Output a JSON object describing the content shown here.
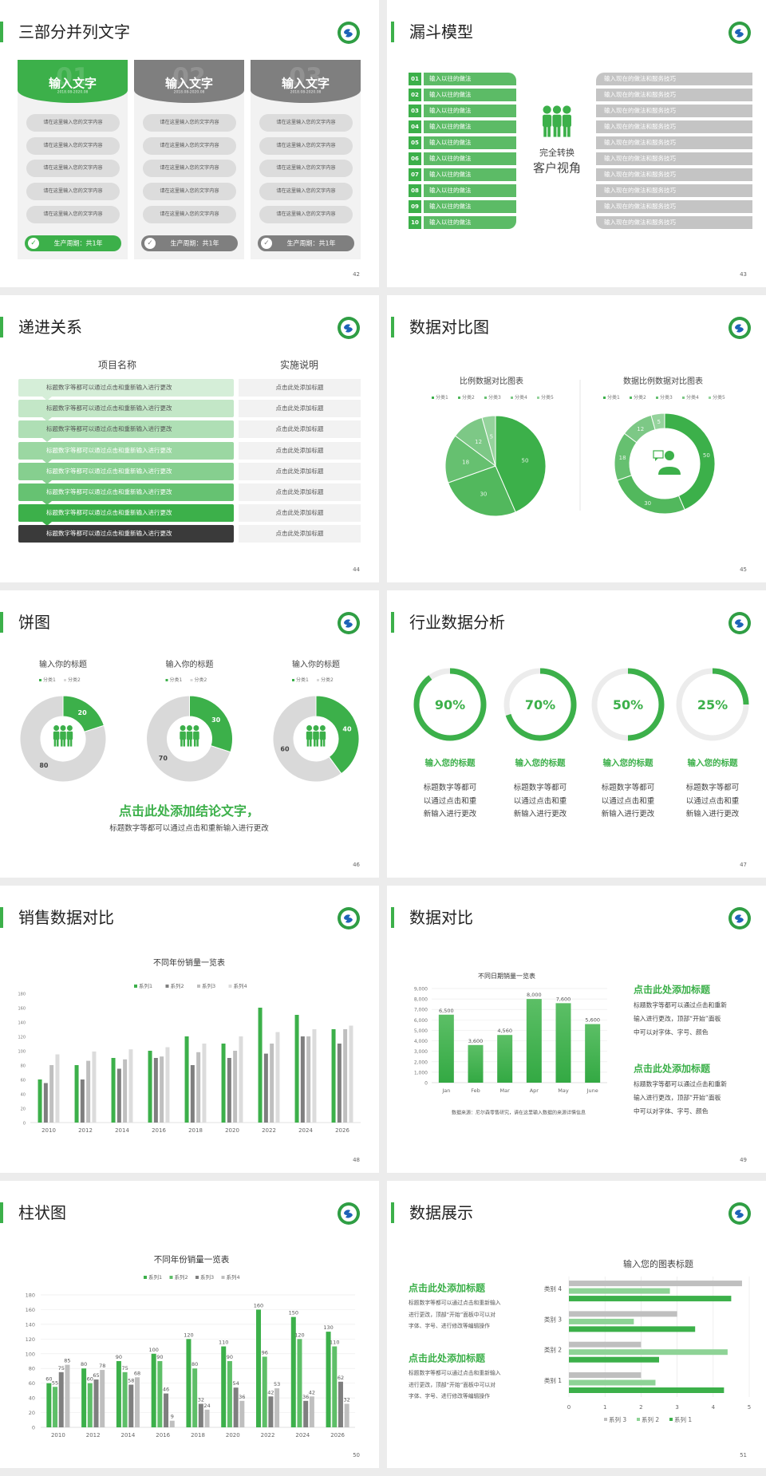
{
  "colors": {
    "green": "#3cb04a",
    "gray": "#7f7f7f",
    "light_gray": "#d9d9d9",
    "dark": "#3a3a3a"
  },
  "s42": {
    "title": "三部分并列文字",
    "page": "42",
    "cards": [
      {
        "heading": "输入文字",
        "number": "01",
        "date": "2018.08-2020.08",
        "accent": "#3cb04a",
        "items": [
          "请在这里输入您的文字内容",
          "请在这里输入您的文字内容",
          "请在这里输入您的文字内容",
          "请在这里输入您的文字内容",
          "请在这里输入您的文字内容"
        ],
        "footer": "生产周期：共1年",
        "footer_icon": "check-circle-icon"
      },
      {
        "heading": "输入文字",
        "number": "02",
        "date": "2018.08-2020.08",
        "accent": "#7f7f7f",
        "items": [
          "请在这里输入您的文字内容",
          "请在这里输入您的文字内容",
          "请在这里输入您的文字内容",
          "请在这里输入您的文字内容",
          "请在这里输入您的文字内容"
        ],
        "footer": "生产周期：共1年",
        "footer_icon": "check-circle-icon"
      },
      {
        "heading": "输入文字",
        "number": "03",
        "date": "2018.08-2020.08",
        "accent": "#7f7f7f",
        "items": [
          "请在这里输入您的文字内容",
          "请在这里输入您的文字内容",
          "请在这里输入您的文字内容",
          "请在这里输入您的文字内容",
          "请在这里输入您的文字内容"
        ],
        "footer": "生产周期：共1年",
        "footer_icon": "check-circle-icon"
      }
    ]
  },
  "s43": {
    "title": "漏斗模型",
    "page": "43",
    "left_rows": [
      {
        "num": "01",
        "label": "输入以往的做法"
      },
      {
        "num": "02",
        "label": "输入以往的做法"
      },
      {
        "num": "03",
        "label": "输入以往的做法"
      },
      {
        "num": "04",
        "label": "输入以往的做法"
      },
      {
        "num": "05",
        "label": "输入以往的做法"
      },
      {
        "num": "06",
        "label": "输入以往的做法"
      },
      {
        "num": "07",
        "label": "输入以往的做法"
      },
      {
        "num": "08",
        "label": "输入以往的做法"
      },
      {
        "num": "09",
        "label": "输入以往的做法"
      },
      {
        "num": "10",
        "label": "输入以往的做法"
      }
    ],
    "right_rows": [
      "输入现在的做法和服务技巧",
      "输入现在的做法和服务技巧",
      "输入现在的做法和服务技巧",
      "输入现在的做法和服务技巧",
      "输入现在的做法和服务技巧",
      "输入现在的做法和服务技巧",
      "输入现在的做法和服务技巧",
      "输入现在的做法和服务技巧",
      "输入现在的做法和服务技巧",
      "输入现在的做法和服务技巧"
    ],
    "center_line1": "完全转换",
    "center_line2": "客户视角",
    "center_icon": "people-group-icon"
  },
  "s44": {
    "title": "递进关系",
    "page": "44",
    "col1_header": "项目名称",
    "col2_header": "实施说明",
    "rows": [
      {
        "item": "标题数字等都可以通过点击和重新输入进行更改",
        "note": "点击此处添加标题",
        "color": "#d5eed8"
      },
      {
        "item": "标题数字等都可以通过点击和重新输入进行更改",
        "note": "点击此处添加标题",
        "color": "#c3e7c7"
      },
      {
        "item": "标题数字等都可以通过点击和重新输入进行更改",
        "note": "点击此处添加标题",
        "color": "#afdfb5"
      },
      {
        "item": "标题数字等都可以通过点击和重新输入进行更改",
        "note": "点击此处添加标题",
        "color": "#9bd7a2"
      },
      {
        "item": "标题数字等都可以通过点击和重新输入进行更改",
        "note": "点击此处添加标题",
        "color": "#86cf8f"
      },
      {
        "item": "标题数字等都可以通过点击和重新输入进行更改",
        "note": "点击此处添加标题",
        "color": "#66c272"
      },
      {
        "item": "标题数字等都可以通过点击和重新输入进行更改",
        "note": "点击此处添加标题",
        "color": "#3cb04a"
      },
      {
        "item": "标题数字等都可以通过点击和重新输入进行更改",
        "note": "点击此处添加标题",
        "color": "#3a3a3a"
      }
    ]
  },
  "s45": {
    "title": "数据对比图",
    "page": "45"
  },
  "s46": {
    "title": "饼图",
    "page": "46",
    "conclusion": "点击此处添加结论文字，",
    "subtitle": "标题数字等都可以通过点击和重新输入进行更改"
  },
  "s47": {
    "title": "行业数据分析",
    "page": "47",
    "rings": [
      {
        "percent": 90,
        "label": "90%",
        "heading": "输入您的标题",
        "lines": [
          "标题数字等都可",
          "以通过点击和重",
          "新输入进行更改"
        ]
      },
      {
        "percent": 70,
        "label": "70%",
        "heading": "输入您的标题",
        "lines": [
          "标题数字等都可",
          "以通过点击和重",
          "新输入进行更改"
        ]
      },
      {
        "percent": 50,
        "label": "50%",
        "heading": "输入您的标题",
        "lines": [
          "标题数字等都可",
          "以通过点击和重",
          "新输入进行更改"
        ]
      },
      {
        "percent": 25,
        "label": "25%",
        "heading": "输入您的标题",
        "lines": [
          "标题数字等都可",
          "以通过点击和重",
          "新输入进行更改"
        ]
      }
    ]
  },
  "s48": {
    "title": "销售数据对比",
    "page": "48"
  },
  "s49": {
    "title": "数据对比",
    "page": "49",
    "source": "数据来源：尼尔森零售研究，请在这里输入数据的来源详情信息",
    "blocks": [
      {
        "heading": "点击此处添加标题",
        "lines": [
          "标题数字等都可以通过点击和重新",
          "输入进行更改，顶部“开始”面板",
          "中可以对字体、字号、颜色"
        ]
      },
      {
        "heading": "点击此处添加标题",
        "lines": [
          "标题数字等都可以通过点击和重新",
          "输入进行更改，顶部“开始”面板",
          "中可以对字体、字号、颜色"
        ]
      }
    ]
  },
  "s50": {
    "title": "柱状图",
    "page": "50"
  },
  "s51": {
    "title": "数据展示",
    "page": "51",
    "blocks": [
      {
        "heading": "点击此处添加标题",
        "lines": [
          "标题数字等都可以通过点击和重新输入",
          "进行更改，顶部“开始”面板中可以对",
          "字体、字号、进行修改等编辑操作"
        ]
      },
      {
        "heading": "点击此处添加标题",
        "lines": [
          "标题数字等都可以通过点击和重新输入",
          "进行更改，顶部“开始”面板中可以对",
          "字体、字号、进行修改等编辑操作"
        ]
      }
    ]
  },
  "chart_data": [
    {
      "id": "s45_pie",
      "type": "pie",
      "title": "比例数据对比图表",
      "categories": [
        "分类1",
        "分类2",
        "分类3",
        "分类4",
        "分类5"
      ],
      "values": [
        50,
        30,
        18,
        12,
        5
      ],
      "colors": [
        "#3cb04a",
        "#52b85d",
        "#66c070",
        "#7dc886",
        "#95d39c"
      ],
      "legend": "top"
    },
    {
      "id": "s45_donut",
      "type": "pie",
      "donut": true,
      "title": "数据比例数据对比图表",
      "categories": [
        "分类1",
        "分类2",
        "分类3",
        "分类4",
        "分类5"
      ],
      "values": [
        50,
        30,
        18,
        12,
        5
      ],
      "colors": [
        "#3cb04a",
        "#52b85d",
        "#66c070",
        "#7dc886",
        "#95d39c"
      ],
      "legend": "top",
      "center_icon": "customer-service-icon"
    },
    {
      "id": "s46_a",
      "type": "pie",
      "donut": true,
      "title": "输入你的标题",
      "categories": [
        "分类1",
        "分类2"
      ],
      "values": [
        20,
        80
      ],
      "colors": [
        "#3cb04a",
        "#d9d9d9"
      ],
      "legend": "top",
      "center_icon": "people-group-icon"
    },
    {
      "id": "s46_b",
      "type": "pie",
      "donut": true,
      "title": "输入你的标题",
      "categories": [
        "分类1",
        "分类2"
      ],
      "values": [
        30,
        70
      ],
      "colors": [
        "#3cb04a",
        "#d9d9d9"
      ],
      "legend": "top",
      "center_icon": "people-group-icon"
    },
    {
      "id": "s46_c",
      "type": "pie",
      "donut": true,
      "title": "输入你的标题",
      "categories": [
        "分类1",
        "分类2"
      ],
      "values": [
        40,
        60
      ],
      "colors": [
        "#3cb04a",
        "#d9d9d9"
      ],
      "legend": "top",
      "center_icon": "people-group-icon"
    },
    {
      "id": "s48_bar",
      "type": "bar",
      "title": "不同年份销量一览表",
      "categories": [
        "2010",
        "2012",
        "2014",
        "2016",
        "2018",
        "2020",
        "2022",
        "2024",
        "2026"
      ],
      "series": [
        {
          "name": "系列1",
          "color": "#3cb04a",
          "values": [
            60,
            80,
            90,
            100,
            120,
            110,
            160,
            150,
            130
          ]
        },
        {
          "name": "系列2",
          "color": "#7f7f7f",
          "values": [
            55,
            60,
            75,
            90,
            80,
            90,
            96,
            120,
            110
          ]
        },
        {
          "name": "系列3",
          "color": "#bfbfbf",
          "values": [
            80,
            86,
            88,
            92,
            98,
            100,
            110,
            120,
            130
          ]
        },
        {
          "name": "系列4",
          "color": "#dcdcdc",
          "values": [
            95,
            99,
            102,
            105,
            110,
            120,
            126,
            130,
            135
          ]
        }
      ],
      "ylim": [
        0,
        180
      ],
      "yticks": [
        "0",
        "20",
        "40",
        "60",
        "80",
        "100",
        "120",
        "140",
        "160",
        "180"
      ],
      "legend": "top",
      "grid": false,
      "data_labels": false
    },
    {
      "id": "s49_bar",
      "type": "bar",
      "title": "不同日期销量一览表",
      "categories": [
        "Jan",
        "Feb",
        "Mar",
        "Apr",
        "May",
        "June"
      ],
      "series": [
        {
          "color": "#3cb04a",
          "values": [
            6500,
            3600,
            4560,
            8000,
            7600,
            5600
          ],
          "labels": [
            "6,500",
            "3,600",
            "4,560",
            "8,000",
            "7,600",
            "5,600"
          ]
        }
      ],
      "ylim": [
        0,
        9000
      ],
      "yticks": [
        "0",
        "1,000",
        "2,000",
        "3,000",
        "4,000",
        "5,000",
        "6,000",
        "7,000",
        "8,000",
        "9,000"
      ],
      "grid": true,
      "data_labels": true
    },
    {
      "id": "s50_bar",
      "type": "bar",
      "title": "不同年份销量一览表",
      "categories": [
        "2010",
        "2012",
        "2014",
        "2016",
        "2018",
        "2020",
        "2022",
        "2024",
        "2026"
      ],
      "series": [
        {
          "name": "系列1",
          "color": "#3cb04a",
          "values": [
            60,
            80,
            90,
            100,
            120,
            110,
            160,
            150,
            130
          ]
        },
        {
          "name": "系列2",
          "color": "#5ebf68",
          "values": [
            55,
            60,
            75,
            90,
            80,
            90,
            96,
            120,
            110
          ]
        },
        {
          "name": "系列3",
          "color": "#7f7f7f",
          "values": [
            75,
            65,
            58,
            46,
            32,
            54,
            42,
            36,
            62
          ]
        },
        {
          "name": "系列4",
          "color": "#bfbfbf",
          "values": [
            85,
            78,
            68,
            9,
            24,
            36,
            53,
            42,
            32
          ]
        }
      ],
      "ylim": [
        0,
        180
      ],
      "yticks": [
        "0",
        "20",
        "40",
        "60",
        "80",
        "100",
        "120",
        "140",
        "160",
        "180"
      ],
      "legend": "top",
      "grid": true,
      "data_labels": true
    },
    {
      "id": "s51_hbar",
      "type": "bar",
      "orientation": "horizontal",
      "title": "输入您的图表标题",
      "categories": [
        "类别 1",
        "类别 2",
        "类别 3",
        "类别 4"
      ],
      "series": [
        {
          "name": "系列 1",
          "color": "#3cb04a",
          "values": [
            4.3,
            2.5,
            3.5,
            4.5
          ]
        },
        {
          "name": "系列 2",
          "color": "#8ed396",
          "values": [
            2.4,
            4.4,
            1.8,
            2.8
          ]
        },
        {
          "name": "系列 3",
          "color": "#bfbfbf",
          "values": [
            2,
            2,
            3,
            4.8
          ]
        }
      ],
      "xlim": [
        0,
        5
      ],
      "xticks": [
        "0",
        "1",
        "2",
        "3",
        "4",
        "5"
      ],
      "legend": "bottom",
      "grid": true
    }
  ]
}
